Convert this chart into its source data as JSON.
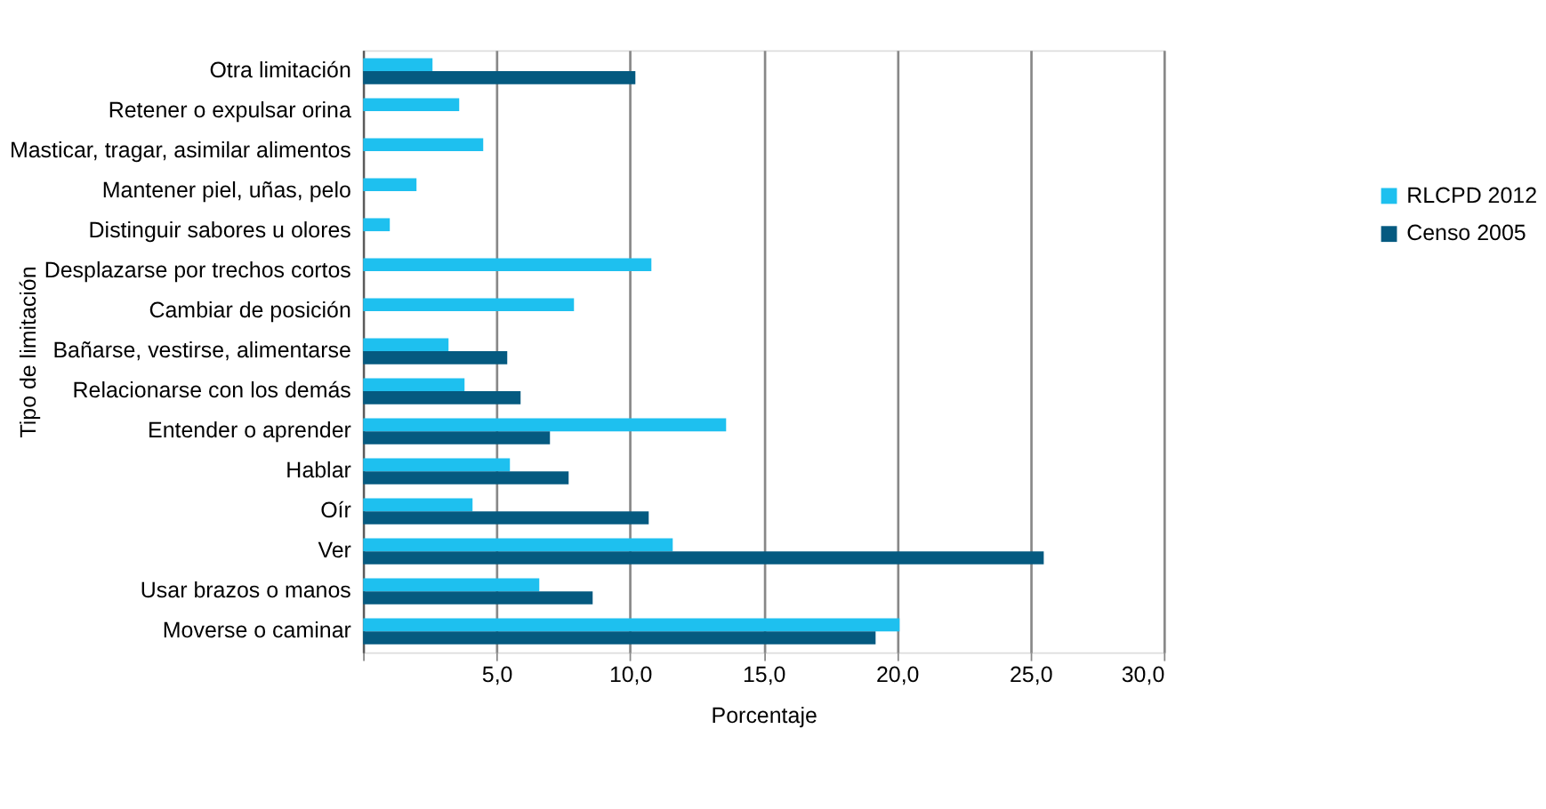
{
  "chart_data": {
    "type": "bar",
    "orientation": "horizontal",
    "xlabel": "Porcentaje",
    "ylabel": "Tipo de limitación",
    "categories": [
      "Otra limitación",
      "Retener o expulsar orina",
      "Masticar, tragar, asimilar alimentos",
      "Mantener piel, uñas, pelo",
      "Distinguir sabores u olores",
      "Desplazarse por trechos cortos",
      "Cambiar de posición",
      "Bañarse, vestirse, alimentarse",
      "Relacionarse con los demás",
      "Entender o aprender",
      "Hablar",
      "Oír",
      "Ver",
      "Usar brazos o manos",
      "Moverse o caminar"
    ],
    "series": [
      {
        "name": "RLCPD 2012",
        "color": "#1ec0ef",
        "values": [
          2.6,
          3.6,
          4.5,
          2.0,
          1.0,
          10.8,
          7.9,
          3.2,
          3.8,
          13.6,
          5.5,
          4.1,
          11.6,
          6.6,
          20.1
        ]
      },
      {
        "name": "Censo 2005",
        "color": "#055a80",
        "values": [
          10.2,
          null,
          null,
          null,
          null,
          null,
          null,
          5.4,
          5.9,
          7.0,
          7.7,
          10.7,
          25.5,
          8.6,
          19.2
        ]
      }
    ],
    "xlim": [
      0,
      30
    ],
    "xticks": [
      {
        "value": 0,
        "label": null
      },
      {
        "value": 5,
        "label": "5,0"
      },
      {
        "value": 10,
        "label": "10,0"
      },
      {
        "value": 15,
        "label": "15,0"
      },
      {
        "value": 20,
        "label": "20,0"
      },
      {
        "value": 25,
        "label": "25,0"
      },
      {
        "value": 30,
        "label": "30,0"
      }
    ],
    "grid": "x",
    "legend": "right"
  }
}
